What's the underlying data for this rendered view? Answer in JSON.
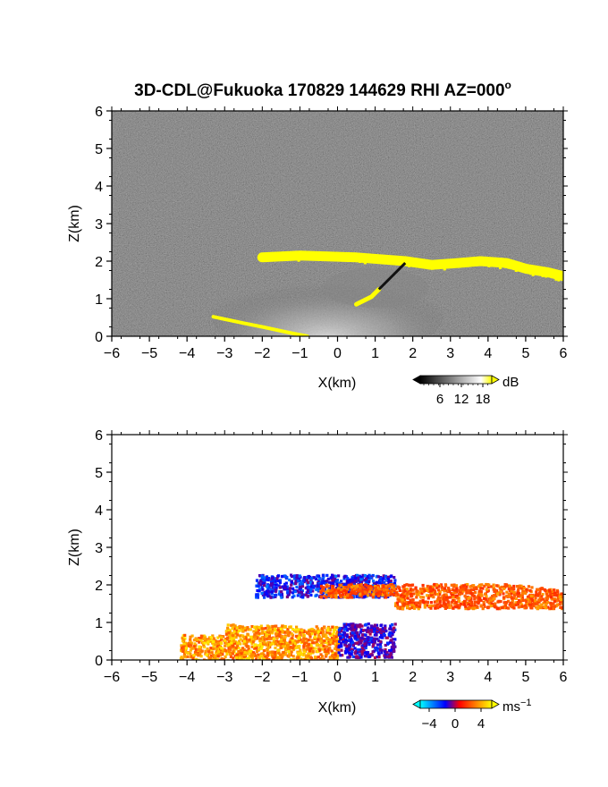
{
  "figure": {
    "title": "3D-CDL@Fukuoka 170829 144629 RHI AZ=000",
    "title_superscript": "o"
  },
  "chart_data": [
    {
      "type": "heatmap",
      "panel": "backscatter-intensity",
      "xlabel": "X(km)",
      "ylabel": "Z(km)",
      "xlim": [
        -6,
        6
      ],
      "ylim": [
        0,
        6
      ],
      "x_ticks": [
        "-6",
        "-5",
        "-4",
        "-3",
        "-2",
        "-1",
        "0",
        "1",
        "2",
        "3",
        "4",
        "5",
        "6"
      ],
      "y_ticks": [
        "0",
        "1",
        "2",
        "3",
        "4",
        "5",
        "6"
      ],
      "background": "noise (dark gray speckle)",
      "colorbar": {
        "unit": "dB",
        "ticks": [
          "6",
          "12",
          "18"
        ],
        "colors": [
          "#000000",
          "#ffffff",
          "#ffff00"
        ]
      },
      "features": [
        {
          "name": "cloud-base echo (saturated)",
          "color": "#ffff00",
          "path": [
            [
              -2.0,
              2.1
            ],
            [
              -1.0,
              2.15
            ],
            [
              0.5,
              2.1
            ],
            [
              1.8,
              2.0
            ],
            [
              2.5,
              1.9
            ],
            [
              3.2,
              1.95
            ],
            [
              3.8,
              2.0
            ],
            [
              4.5,
              1.95
            ],
            [
              5.0,
              1.8
            ],
            [
              5.6,
              1.7
            ],
            [
              6.0,
              1.6
            ]
          ]
        },
        {
          "name": "ground clutter (saturated)",
          "color": "#ffff00",
          "path": [
            [
              -3.3,
              0.52
            ],
            [
              -2.5,
              0.35
            ],
            [
              -2.0,
              0.25
            ],
            [
              -1.3,
              0.1
            ],
            [
              -0.8,
              0.0
            ]
          ]
        },
        {
          "name": "precipitation-shaft echo",
          "color": "#ffff00",
          "path": [
            [
              0.5,
              0.85
            ],
            [
              0.9,
              1.05
            ],
            [
              1.1,
              1.25
            ]
          ]
        },
        {
          "name": "rain region",
          "color": "#b0b0b0",
          "x_range": [
            -2.5,
            2.5
          ],
          "z_range": [
            0,
            2
          ]
        }
      ]
    },
    {
      "type": "heatmap",
      "panel": "radial-velocity",
      "xlabel": "X(km)",
      "ylabel": "Z(km)",
      "xlim": [
        -6,
        6
      ],
      "ylim": [
        0,
        6
      ],
      "x_ticks": [
        "-6",
        "-5",
        "-4",
        "-3",
        "-2",
        "-1",
        "0",
        "1",
        "2",
        "3",
        "4",
        "5",
        "6"
      ],
      "y_ticks": [
        "0",
        "1",
        "2",
        "3",
        "4",
        "5",
        "6"
      ],
      "colorbar": {
        "unit": "ms",
        "unit_superscript": "-1",
        "ticks": [
          "-4",
          "0",
          "4"
        ],
        "range": [
          -5,
          5
        ],
        "colors": [
          "#00ffff",
          "#0000ff",
          "#ff0000",
          "#ffff00"
        ]
      },
      "features": [
        {
          "name": "upper layer (toward)",
          "approx_velocity": -2.5,
          "x_range": [
            -2.2,
            1.5
          ],
          "z_range": [
            1.7,
            2.3
          ]
        },
        {
          "name": "upper layer (away)",
          "approx_velocity": 2.5,
          "x_range": [
            -0.5,
            6.0
          ],
          "z_range": [
            1.4,
            2.1
          ]
        },
        {
          "name": "low-level outflow",
          "approx_velocity": 3.5,
          "x_range": [
            -4.2,
            0.0
          ],
          "z_range": [
            0.0,
            1.0
          ]
        },
        {
          "name": "downdraft core",
          "approx_velocity": -2.0,
          "x_range": [
            0.0,
            1.5
          ],
          "z_range": [
            0.1,
            1.0
          ]
        }
      ]
    }
  ]
}
